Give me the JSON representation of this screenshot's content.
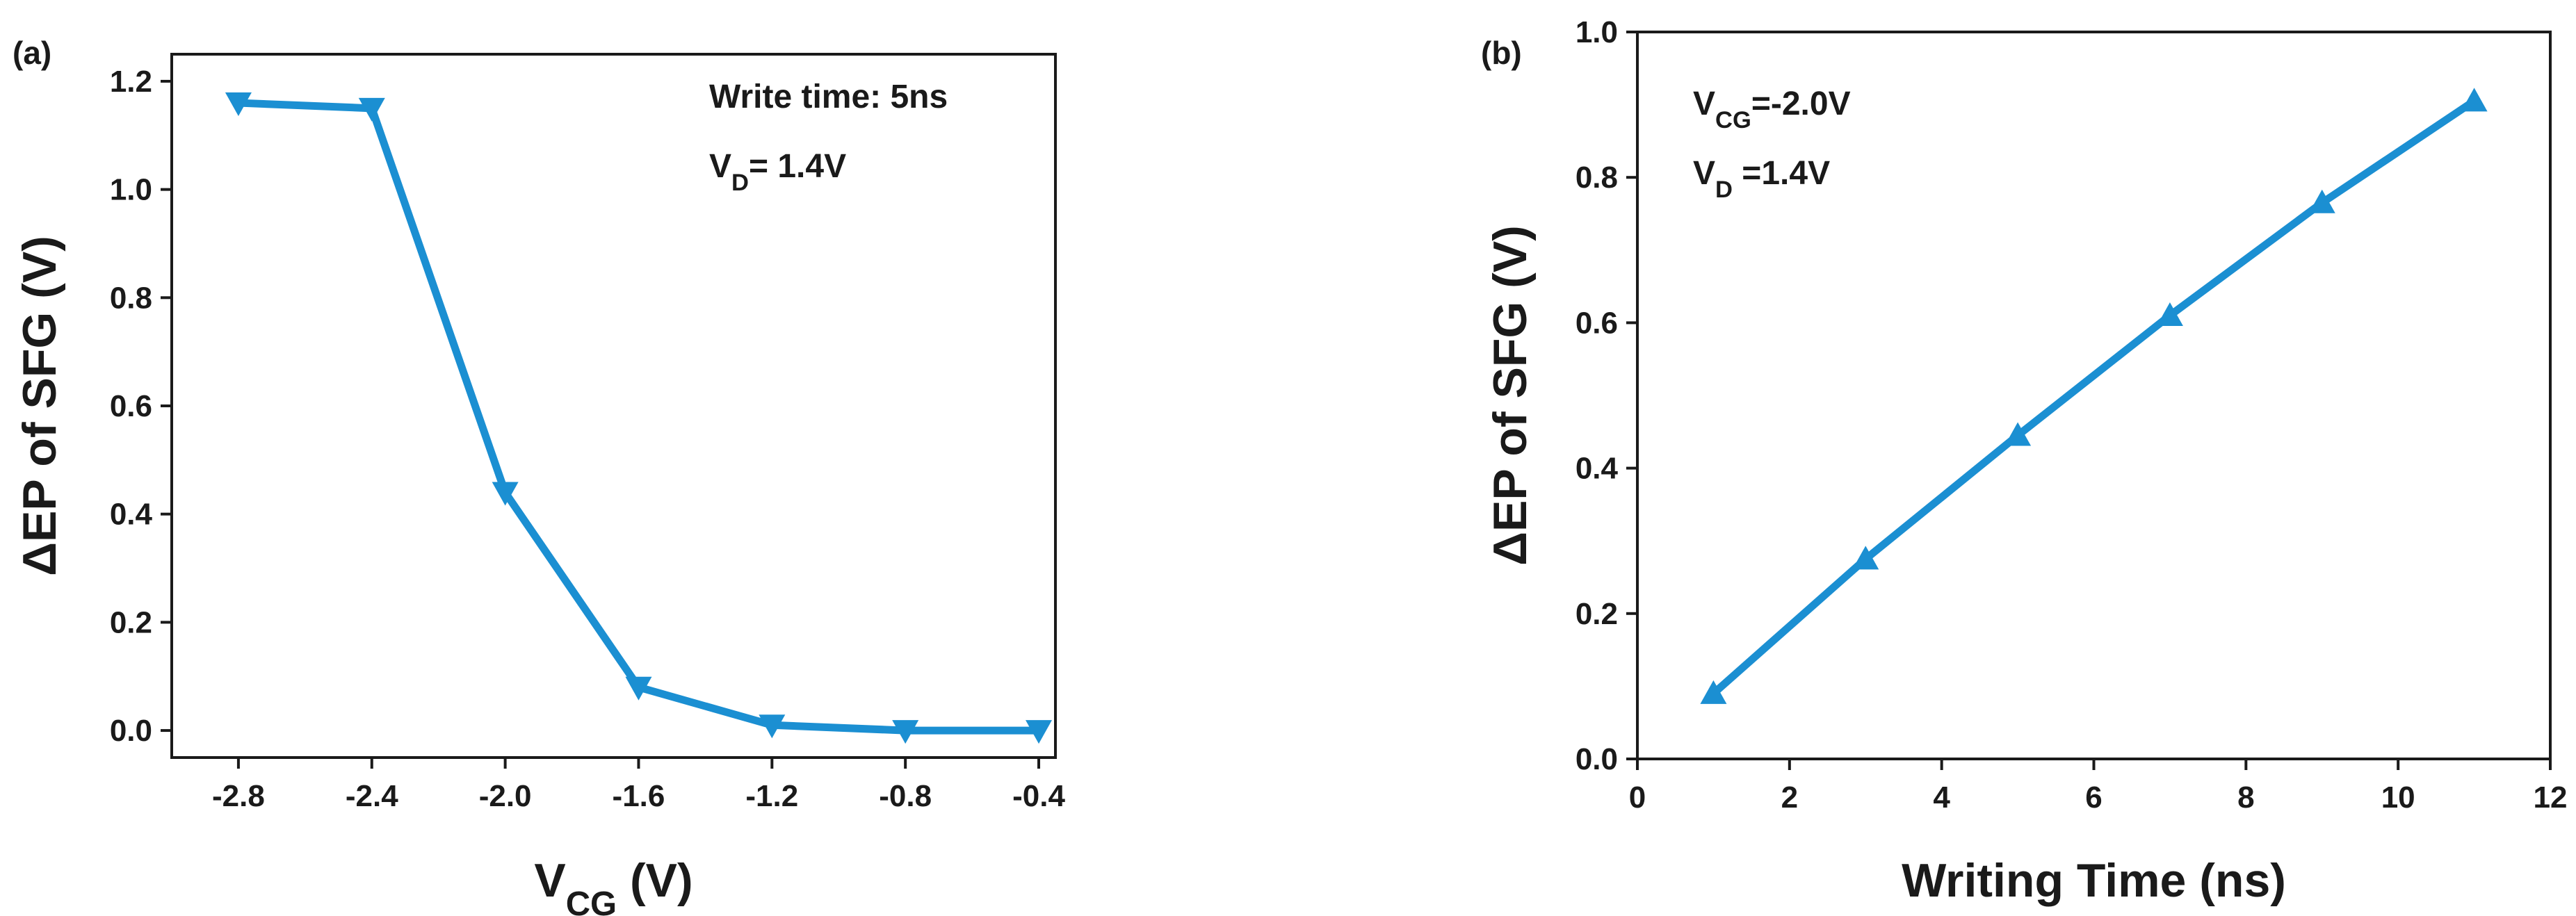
{
  "colors": {
    "series": "#1b8fd2",
    "axis": "#1a1a1a",
    "background": "#ffffff"
  },
  "chart_data": [
    {
      "type": "line",
      "panel_label": "(a)",
      "marker": "triangle-down",
      "series_color": "#1b8fd2",
      "x": [
        -2.8,
        -2.4,
        -2.0,
        -1.6,
        -1.2,
        -0.8,
        -0.4
      ],
      "series": [
        {
          "name": "ΔEP of SFG",
          "values": [
            1.16,
            1.15,
            0.44,
            0.08,
            0.01,
            0.0,
            0.0
          ]
        }
      ],
      "xlim": [
        -3.0,
        -0.35
      ],
      "ylim": [
        -0.05,
        1.25
      ],
      "xticks": [
        -2.8,
        -2.4,
        -2.0,
        -1.6,
        -1.2,
        -0.8,
        -0.4
      ],
      "xtick_labels": [
        "-2.8",
        "-2.4",
        "-2.0",
        "-1.6",
        "-1.2",
        "-0.8",
        "-0.4"
      ],
      "yticks": [
        0.0,
        0.2,
        0.4,
        0.6,
        0.8,
        1.0,
        1.2
      ],
      "ytick_labels": [
        "0.0",
        "0.2",
        "0.4",
        "0.6",
        "0.8",
        "1.0",
        "1.2"
      ],
      "xlabel": {
        "main": "V",
        "sub": "CG",
        "rest": " (V)"
      },
      "ylabel": "ΔEP of SFG (V)",
      "annotations": [
        {
          "main": "Write time: 5ns",
          "sub": "",
          "rest": ""
        },
        {
          "main": "V",
          "sub": "D",
          "rest": "= 1.4V"
        }
      ],
      "legend": "none",
      "grid": false
    },
    {
      "type": "line",
      "panel_label": "(b)",
      "marker": "triangle-up",
      "series_color": "#1b8fd2",
      "x": [
        1,
        3,
        5,
        7,
        9,
        11
      ],
      "series": [
        {
          "name": "ΔEP of SFG",
          "values": [
            0.09,
            0.275,
            0.445,
            0.61,
            0.765,
            0.905
          ]
        }
      ],
      "xlim": [
        0,
        12
      ],
      "ylim": [
        0.0,
        1.0
      ],
      "xticks": [
        0,
        2,
        4,
        6,
        8,
        10,
        12
      ],
      "xtick_labels": [
        "0",
        "2",
        "4",
        "6",
        "8",
        "10",
        "12"
      ],
      "yticks": [
        0.0,
        0.2,
        0.4,
        0.6,
        0.8,
        1.0
      ],
      "ytick_labels": [
        "0.0",
        "0.2",
        "0.4",
        "0.6",
        "0.8",
        "1.0"
      ],
      "xlabel": {
        "main": "Writing Time (ns)",
        "sub": "",
        "rest": ""
      },
      "ylabel": "ΔEP of SFG (V)",
      "annotations": [
        {
          "main": "V",
          "sub": "CG",
          "rest": "=-2.0V"
        },
        {
          "main": "V",
          "sub": "D",
          "rest": " =1.4V"
        }
      ],
      "legend": "none",
      "grid": false
    }
  ]
}
